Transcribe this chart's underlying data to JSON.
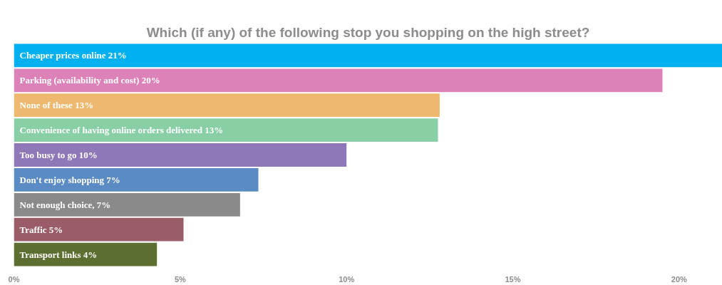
{
  "chart_data": {
    "type": "bar",
    "orientation": "horizontal",
    "title": "Which (if any) of the following stop you shopping on the high street?",
    "categories": [
      "Cheaper prices online 21%",
      "Parking (availability and cost) 20%",
      "None of these 13%",
      "Convenience of having online orders delivered 13%",
      "Too busy to go 10%",
      "Don't enjoy shopping 7%",
      "Not enough choice, 7%",
      "Traffic 5%",
      "Transport links 4%"
    ],
    "values": [
      21.3,
      19.5,
      12.8,
      12.75,
      10.0,
      7.35,
      6.8,
      5.1,
      4.3
    ],
    "colors": [
      "#00b0f0",
      "#dc82b8",
      "#eeb86e",
      "#88cfa6",
      "#8e78b8",
      "#5a8bc4",
      "#8a8a8a",
      "#9a5c66",
      "#5c6e30"
    ],
    "xlim": [
      0,
      21.3
    ],
    "xticks": [
      {
        "value": 0,
        "label": "0%"
      },
      {
        "value": 5,
        "label": "5%"
      },
      {
        "value": 10,
        "label": "10%"
      },
      {
        "value": 15,
        "label": "15%"
      },
      {
        "value": 20,
        "label": "20%"
      }
    ],
    "grid": false
  }
}
